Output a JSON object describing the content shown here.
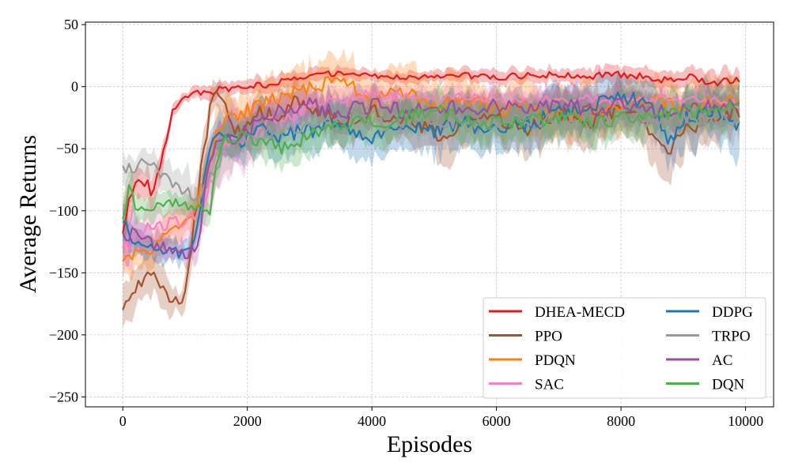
{
  "chart_data": {
    "type": "line",
    "title": "",
    "xlabel": "Episodes",
    "ylabel": "Average Returns",
    "xlim": [
      -600,
      10450
    ],
    "ylim": [
      -258,
      52
    ],
    "xticks": [
      0,
      2000,
      4000,
      6000,
      8000,
      10000
    ],
    "yticks": [
      50,
      0,
      -50,
      -100,
      -150,
      -200,
      -250
    ],
    "grid": true,
    "legend_position": "bottom-right",
    "legend_columns": 2,
    "series": [
      {
        "name": "DHEA-MECD",
        "color": "#e41a1c",
        "x": [
          0,
          200,
          400,
          500,
          600,
          700,
          800,
          900,
          1000,
          1200,
          1400,
          1600,
          1800,
          2000,
          2200,
          2500,
          2800,
          3000,
          3300,
          3600,
          4000,
          4500,
          5000,
          5500,
          6000,
          6500,
          7000,
          7500,
          8000,
          8500,
          9000,
          9500,
          9900
        ],
        "mean": [
          -115,
          -75,
          -80,
          -85,
          -60,
          -40,
          -18,
          -12,
          -8,
          -5,
          -4,
          -2,
          -1,
          0,
          1,
          3,
          6,
          8,
          10,
          12,
          9,
          7,
          8,
          9,
          8,
          9,
          10,
          8,
          9,
          7,
          6,
          5,
          3
        ],
        "spread": [
          25,
          15,
          14,
          14,
          14,
          10,
          6,
          5,
          4,
          5,
          6,
          6,
          6,
          6,
          7,
          7,
          7,
          6,
          6,
          5,
          5,
          5,
          5,
          6,
          6,
          6,
          6,
          7,
          8,
          8,
          9,
          10,
          9
        ]
      },
      {
        "name": "PPO",
        "color": "#a6522a",
        "x": [
          0,
          200,
          400,
          600,
          800,
          900,
          1000,
          1100,
          1200,
          1300,
          1400,
          1500,
          1600,
          1800,
          2000,
          2200,
          2500,
          2800,
          3000,
          3500,
          4000,
          4500,
          5000,
          5200,
          5500,
          6000,
          6500,
          7000,
          7500,
          8000,
          8500,
          8800,
          9000,
          9500,
          9900
        ],
        "mean": [
          -178,
          -160,
          -150,
          -160,
          -170,
          -178,
          -160,
          -130,
          -90,
          -50,
          -20,
          0,
          -10,
          -40,
          -30,
          -20,
          -25,
          -10,
          -15,
          -30,
          -20,
          -25,
          -35,
          -45,
          -30,
          -25,
          -35,
          -20,
          -30,
          -15,
          -40,
          -50,
          -35,
          -25,
          -20
        ],
        "spread": [
          20,
          20,
          18,
          18,
          12,
          10,
          15,
          20,
          20,
          20,
          15,
          10,
          12,
          20,
          18,
          16,
          18,
          15,
          15,
          18,
          16,
          18,
          20,
          25,
          22,
          20,
          22,
          20,
          22,
          22,
          25,
          25,
          22,
          20,
          18
        ]
      },
      {
        "name": "PDQN",
        "color": "#ff7f0e",
        "x": [
          0,
          200,
          400,
          600,
          800,
          1000,
          1200,
          1400,
          1500,
          1600,
          1800,
          2000,
          2200,
          2500,
          2800,
          3000,
          3500,
          4000,
          4500,
          5000,
          5500,
          6000,
          6500,
          7000,
          7500,
          8000,
          8500,
          9000,
          9500,
          9900
        ],
        "mean": [
          -140,
          -135,
          -130,
          -125,
          -120,
          -110,
          -90,
          -60,
          -40,
          -30,
          -25,
          -20,
          -15,
          -10,
          -5,
          0,
          5,
          -10,
          -5,
          -15,
          -10,
          -20,
          -15,
          -25,
          -20,
          -15,
          -10,
          -15,
          -10,
          -12
        ],
        "spread": [
          15,
          15,
          15,
          15,
          14,
          14,
          15,
          20,
          20,
          18,
          18,
          18,
          18,
          20,
          20,
          20,
          22,
          20,
          22,
          25,
          22,
          20,
          22,
          22,
          22,
          22,
          20,
          20,
          20,
          20
        ]
      },
      {
        "name": "SAC",
        "color": "#f781bf",
        "x": [
          0,
          200,
          400,
          600,
          800,
          1000,
          1200,
          1400,
          1600,
          1800,
          2000,
          2200,
          2500,
          2800,
          3000,
          3500,
          4000,
          4500,
          5000,
          5500,
          6000,
          6500,
          7000,
          7500,
          8000,
          8500,
          9000,
          9500,
          9900
        ],
        "mean": [
          -130,
          -120,
          -115,
          -112,
          -110,
          -108,
          -100,
          -80,
          -50,
          -45,
          -40,
          -35,
          -25,
          -20,
          -15,
          -10,
          -5,
          -8,
          -10,
          -8,
          -10,
          -12,
          -10,
          -10,
          -12,
          -10,
          -10,
          -12,
          -15
        ],
        "spread": [
          25,
          15,
          15,
          15,
          15,
          15,
          20,
          25,
          30,
          30,
          25,
          20,
          15,
          12,
          10,
          10,
          8,
          8,
          8,
          8,
          8,
          8,
          8,
          8,
          8,
          8,
          8,
          8,
          8
        ]
      },
      {
        "name": "DDPG",
        "color": "#1f77b4",
        "x": [
          0,
          200,
          400,
          600,
          800,
          1000,
          1100,
          1200,
          1300,
          1400,
          1500,
          1600,
          1800,
          2000,
          2200,
          2500,
          3000,
          3500,
          4000,
          4500,
          5000,
          5500,
          6000,
          6500,
          7000,
          7500,
          8000,
          8500,
          8800,
          9000,
          9500,
          9900
        ],
        "mean": [
          -110,
          -125,
          -130,
          -135,
          -132,
          -135,
          -130,
          -110,
          -80,
          -50,
          -40,
          -45,
          -45,
          -40,
          -35,
          -40,
          -35,
          -30,
          -40,
          -30,
          -35,
          -30,
          -35,
          -30,
          -20,
          -15,
          -5,
          -20,
          -45,
          -25,
          -20,
          -30
        ],
        "spread": [
          15,
          12,
          10,
          10,
          10,
          10,
          10,
          12,
          15,
          15,
          15,
          18,
          18,
          18,
          20,
          20,
          20,
          20,
          20,
          20,
          22,
          22,
          20,
          22,
          22,
          22,
          22,
          22,
          25,
          25,
          25,
          30
        ]
      },
      {
        "name": "TRPO",
        "color": "#999999",
        "x": [
          0,
          200,
          400,
          600,
          800,
          1000,
          1200,
          1400,
          1600,
          1800,
          2000,
          2200,
          2500,
          3000,
          3500,
          4000,
          4500,
          5000,
          5500,
          6000,
          6500,
          7000,
          7500,
          8000,
          8500,
          9000,
          9500,
          9900
        ],
        "mean": [
          -65,
          -65,
          -60,
          -70,
          -80,
          -85,
          -90,
          -75,
          -55,
          -50,
          -45,
          -40,
          -35,
          -30,
          -25,
          -30,
          -28,
          -25,
          -30,
          -28,
          -25,
          -28,
          -30,
          -25,
          -28,
          -25,
          -27,
          -25
        ],
        "spread": [
          12,
          10,
          10,
          12,
          15,
          18,
          20,
          20,
          18,
          18,
          18,
          16,
          16,
          16,
          16,
          18,
          18,
          18,
          18,
          18,
          18,
          18,
          18,
          18,
          18,
          18,
          18,
          18
        ]
      },
      {
        "name": "AC",
        "color": "#984ea3",
        "x": [
          0,
          200,
          400,
          600,
          800,
          1000,
          1200,
          1300,
          1400,
          1500,
          1600,
          1800,
          2000,
          2200,
          2500,
          3000,
          3500,
          4000,
          4500,
          5000,
          5500,
          6000,
          6500,
          7000,
          7500,
          8000,
          8500,
          9000,
          9500,
          9900
        ],
        "mean": [
          -120,
          -120,
          -125,
          -130,
          -132,
          -135,
          -130,
          -90,
          -60,
          -40,
          -45,
          -40,
          -35,
          -30,
          -20,
          -15,
          -20,
          -15,
          -20,
          -15,
          -18,
          -15,
          -20,
          -15,
          -18,
          -15,
          -20,
          -18,
          -15,
          -15
        ],
        "spread": [
          20,
          15,
          12,
          12,
          10,
          10,
          12,
          15,
          15,
          15,
          15,
          15,
          15,
          15,
          15,
          15,
          15,
          15,
          15,
          15,
          15,
          15,
          15,
          15,
          15,
          15,
          15,
          15,
          15,
          15
        ]
      },
      {
        "name": "DQN",
        "color": "#4daf4a",
        "x": [
          0,
          100,
          200,
          300,
          400,
          600,
          800,
          1000,
          1200,
          1400,
          1500,
          1600,
          1800,
          2000,
          2200,
          2500,
          3000,
          3500,
          4000,
          4500,
          5000,
          5500,
          6000,
          6500,
          7000,
          7500,
          8000,
          8500,
          9000,
          9500,
          9900
        ],
        "mean": [
          -110,
          -80,
          -100,
          -102,
          -100,
          -95,
          -92,
          -95,
          -100,
          -98,
          -70,
          -45,
          -40,
          -42,
          -45,
          -50,
          -40,
          -30,
          -28,
          -25,
          -20,
          -25,
          -30,
          -28,
          -25,
          -30,
          -25,
          -22,
          -20,
          -18,
          -10
        ],
        "spread": [
          20,
          15,
          12,
          12,
          10,
          10,
          10,
          10,
          12,
          12,
          15,
          15,
          15,
          15,
          15,
          15,
          18,
          18,
          18,
          18,
          18,
          18,
          18,
          18,
          18,
          18,
          18,
          18,
          18,
          18,
          18
        ]
      }
    ]
  }
}
